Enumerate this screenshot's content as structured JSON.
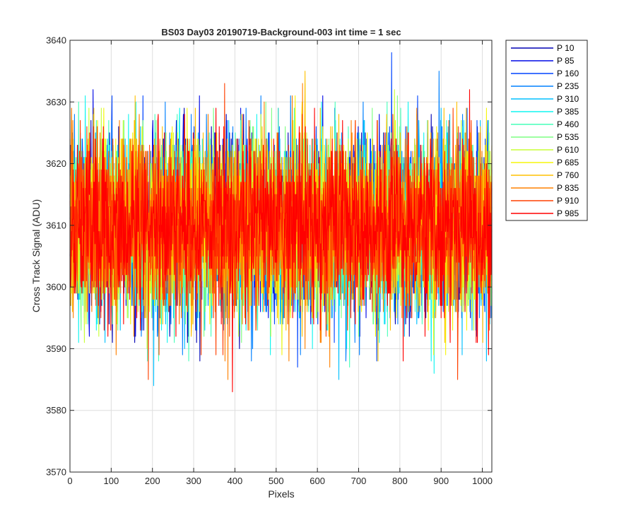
{
  "chart_data": {
    "type": "line",
    "title": "BS03 Day03 20190719-Background-003 int time = 1 sec",
    "xlabel": "Pixels",
    "ylabel": "Cross Track Signal (ADU)",
    "xlim": [
      0,
      1023
    ],
    "ylim": [
      3570,
      3640
    ],
    "xticks": [
      0,
      100,
      200,
      300,
      400,
      500,
      600,
      700,
      800,
      900,
      1000
    ],
    "yticks": [
      3570,
      3580,
      3590,
      3600,
      3610,
      3620,
      3630,
      3640
    ],
    "grid": true,
    "legend_position": "outside-top-right",
    "num_points": 1024,
    "noise_profile": {
      "mean": 3610,
      "std_dev": 7,
      "min": 3577,
      "max": 3640
    },
    "series": [
      {
        "name": "P 10",
        "color": "#0000b3"
      },
      {
        "name": "P 85",
        "color": "#0008e6"
      },
      {
        "name": "P 160",
        "color": "#0044ff"
      },
      {
        "name": "P 235",
        "color": "#0080ff"
      },
      {
        "name": "P 310",
        "color": "#00c0ff"
      },
      {
        "name": "P 385",
        "color": "#11f5f0"
      },
      {
        "name": "P 460",
        "color": "#46ffb9"
      },
      {
        "name": "P 535",
        "color": "#7dff82"
      },
      {
        "name": "P 610",
        "color": "#c8ff37"
      },
      {
        "name": "P 685",
        "color": "#f5f50a"
      },
      {
        "name": "P 760",
        "color": "#ffc000"
      },
      {
        "name": "P 835",
        "color": "#ff8000"
      },
      {
        "name": "P 910",
        "color": "#ff4000"
      },
      {
        "name": "P 985",
        "color": "#ff0000"
      }
    ]
  }
}
